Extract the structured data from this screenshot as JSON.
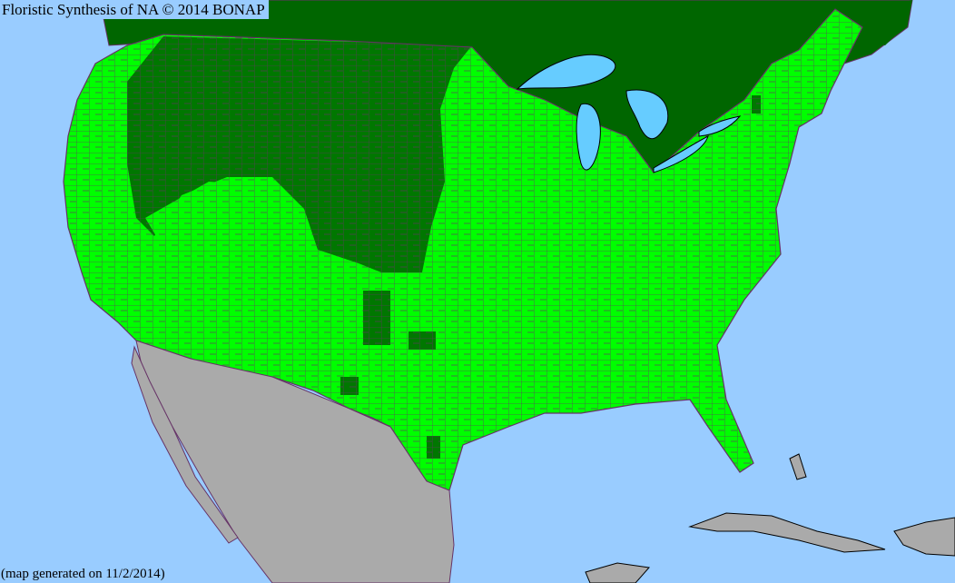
{
  "map": {
    "title": "Floristic Synthesis of NA © 2014 BONAP",
    "footer": "(map generated on 11/2/2014)",
    "colors": {
      "ocean": "#99ccff",
      "lakes": "#66ccff",
      "canada": "#006600",
      "present_state_color": "#00ff00",
      "county_dark": "#007700",
      "mexico_caribbean": "#aaaaaa",
      "county_borders": "#663366"
    }
  }
}
